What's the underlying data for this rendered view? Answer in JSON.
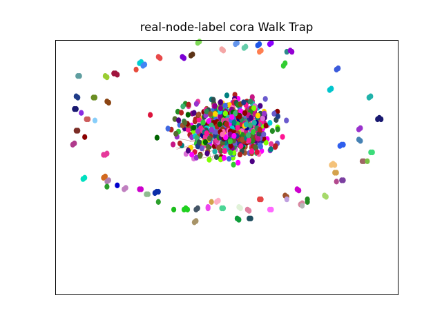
{
  "chart_data": {
    "type": "scatter",
    "title": "real-node-label cora Walk Trap",
    "xlabel": "",
    "ylabel": "",
    "axes_ticks": "none",
    "grid": false,
    "legend": "none",
    "point_size": "small",
    "xlim": [
      -1.0,
      1.0
    ],
    "ylim": [
      -1.0,
      1.0
    ],
    "layout": "graph node embedding: dense central cluster with small peripheral communities arranged in a ring",
    "series": [
      {
        "color": "#7ed957",
        "points": [
          [
            -0.17,
            0.98
          ],
          [
            -0.16,
            0.99
          ]
        ]
      },
      {
        "color": "#f4a6a6",
        "points": [
          [
            -0.03,
            0.93
          ],
          [
            -0.02,
            0.92
          ]
        ]
      },
      {
        "color": "#6495ed",
        "points": [
          [
            0.05,
            0.97
          ],
          [
            0.06,
            0.98
          ]
        ]
      },
      {
        "color": "#66cdaa",
        "points": [
          [
            0.1,
            0.94
          ],
          [
            0.11,
            0.95
          ]
        ]
      },
      {
        "color": "#1e56e8",
        "points": [
          [
            0.18,
            0.96
          ],
          [
            0.19,
            0.97
          ]
        ]
      },
      {
        "color": "#8b00ff",
        "points": [
          [
            0.25,
            0.97
          ],
          [
            0.26,
            0.98
          ]
        ]
      },
      {
        "color": "#ff7f50",
        "points": [
          [
            0.19,
            0.91
          ],
          [
            0.2,
            0.92
          ]
        ]
      },
      {
        "color": "#2e8b8b",
        "points": [
          [
            0.35,
            0.91
          ]
        ]
      },
      {
        "color": "#9400d3",
        "points": [
          [
            0.37,
            0.92
          ],
          [
            0.38,
            0.91
          ]
        ]
      },
      {
        "color": "#5c3317",
        "points": [
          [
            -0.2,
            0.89
          ],
          [
            -0.21,
            0.88
          ]
        ]
      },
      {
        "color": "#7b00d4",
        "points": [
          [
            -0.25,
            0.86
          ],
          [
            -0.26,
            0.87
          ]
        ]
      },
      {
        "color": "#e84a4a",
        "points": [
          [
            -0.39,
            0.86
          ],
          [
            -0.4,
            0.87
          ]
        ]
      },
      {
        "color": "#00ced1",
        "points": [
          [
            -0.51,
            0.82
          ],
          [
            -0.5,
            0.83
          ]
        ]
      },
      {
        "color": "#4285f4",
        "points": [
          [
            -0.48,
            0.81
          ],
          [
            -0.49,
            0.8
          ]
        ]
      },
      {
        "color": "#e74c3c",
        "points": [
          [
            -0.53,
            0.77
          ]
        ]
      },
      {
        "color": "#32cd32",
        "points": [
          [
            0.33,
            0.8
          ],
          [
            0.34,
            0.82
          ]
        ]
      },
      {
        "color": "#a0153e",
        "points": [
          [
            -0.65,
            0.74
          ],
          [
            -0.64,
            0.73
          ],
          [
            -0.66,
            0.74
          ]
        ]
      },
      {
        "color": "#9acd32",
        "points": [
          [
            -0.71,
            0.72
          ],
          [
            -0.7,
            0.71
          ]
        ]
      },
      {
        "color": "#5f9ea0",
        "points": [
          [
            -0.87,
            0.72
          ],
          [
            -0.86,
            0.72
          ]
        ]
      },
      {
        "color": "#3b5bdb",
        "points": [
          [
            0.64,
            0.77
          ],
          [
            0.65,
            0.78
          ]
        ]
      },
      {
        "color": "#00c5cd",
        "points": [
          [
            0.6,
            0.61
          ],
          [
            0.61,
            0.62
          ]
        ]
      },
      {
        "color": "#20b2aa",
        "points": [
          [
            0.83,
            0.55
          ],
          [
            0.84,
            0.56
          ]
        ]
      },
      {
        "color": "#1f3c88",
        "points": [
          [
            -0.88,
            0.56
          ],
          [
            -0.87,
            0.55
          ]
        ]
      },
      {
        "color": "#6b8e23",
        "points": [
          [
            -0.78,
            0.55
          ],
          [
            -0.77,
            0.55
          ]
        ]
      },
      {
        "color": "#8b4513",
        "points": [
          [
            -0.7,
            0.52
          ],
          [
            -0.69,
            0.51
          ]
        ]
      },
      {
        "color": "#191970",
        "points": [
          [
            -0.89,
            0.46
          ],
          [
            -0.88,
            0.46
          ]
        ]
      },
      {
        "color": "#8a2be2",
        "points": [
          [
            -0.85,
            0.43
          ]
        ]
      },
      {
        "color": "#cd5c5c",
        "points": [
          [
            -0.82,
            0.38
          ],
          [
            -0.81,
            0.38
          ]
        ]
      },
      {
        "color": "#87cefa",
        "points": [
          [
            -0.77,
            0.37
          ]
        ]
      },
      {
        "color": "#191970",
        "points": [
          [
            0.9,
            0.38
          ],
          [
            0.89,
            0.39
          ],
          [
            0.88,
            0.38
          ]
        ]
      },
      {
        "color": "#9932cc",
        "points": [
          [
            0.77,
            0.3
          ],
          [
            0.78,
            0.31
          ]
        ]
      },
      {
        "color": "#7b2d26",
        "points": [
          [
            -0.88,
            0.29
          ],
          [
            -0.87,
            0.29
          ]
        ]
      },
      {
        "color": "#4682b4",
        "points": [
          [
            0.77,
            0.22
          ],
          [
            0.78,
            0.21
          ]
        ]
      },
      {
        "color": "#8b0000",
        "points": [
          [
            -0.83,
            0.24
          ]
        ]
      },
      {
        "color": "#b03a8c",
        "points": [
          [
            -0.9,
            0.18
          ],
          [
            -0.89,
            0.19
          ]
        ]
      },
      {
        "color": "#2f5fed",
        "points": [
          [
            0.66,
            0.17
          ],
          [
            0.67,
            0.18
          ],
          [
            0.68,
            0.18
          ]
        ]
      },
      {
        "color": "#3cdc7a",
        "points": [
          [
            0.84,
            0.12
          ],
          [
            0.85,
            0.12
          ]
        ]
      },
      {
        "color": "#e6399b",
        "points": [
          [
            -0.7,
            0.11
          ],
          [
            -0.71,
            0.1
          ],
          [
            -0.72,
            0.1
          ]
        ]
      },
      {
        "color": "#9f6565",
        "points": [
          [
            0.8,
            0.05
          ],
          [
            0.79,
            0.05
          ]
        ]
      },
      {
        "color": "#7ac143",
        "points": [
          [
            0.82,
            0.05
          ]
        ]
      },
      {
        "color": "#f4c27a",
        "points": [
          [
            0.61,
            0.02
          ],
          [
            0.62,
            0.03
          ],
          [
            0.63,
            0.02
          ]
        ]
      },
      {
        "color": "#d4a24c",
        "points": [
          [
            0.63,
            -0.04
          ],
          [
            0.64,
            -0.04
          ]
        ]
      },
      {
        "color": "#7b3fa0",
        "points": [
          [
            0.67,
            -0.1
          ],
          [
            0.68,
            -0.1
          ]
        ]
      },
      {
        "color": "#b34a8e",
        "points": [
          [
            0.64,
            -0.11
          ]
        ]
      },
      {
        "color": "#00e0c0",
        "points": [
          [
            -0.84,
            -0.09
          ],
          [
            -0.83,
            -0.08
          ]
        ]
      },
      {
        "color": "#d2691e",
        "points": [
          [
            -0.72,
            -0.08
          ],
          [
            -0.71,
            -0.07
          ]
        ]
      },
      {
        "color": "#b07fb0",
        "points": [
          [
            -0.7,
            -0.11
          ],
          [
            -0.69,
            -0.1
          ]
        ]
      },
      {
        "color": "#2a9d2a",
        "points": [
          [
            -0.7,
            -0.15
          ]
        ]
      },
      {
        "color": "#0000cd",
        "points": [
          [
            -0.64,
            -0.14
          ]
        ]
      },
      {
        "color": "#c080c0",
        "points": [
          [
            -0.6,
            -0.17
          ],
          [
            -0.59,
            -0.16
          ]
        ]
      },
      {
        "color": "#cc00cc",
        "points": [
          [
            -0.51,
            -0.17
          ],
          [
            -0.5,
            -0.17
          ]
        ]
      },
      {
        "color": "#0b2fa8",
        "points": [
          [
            -0.42,
            -0.2
          ],
          [
            -0.41,
            -0.19
          ],
          [
            -0.4,
            -0.19
          ]
        ]
      },
      {
        "color": "#8fbc8f",
        "points": [
          [
            -0.47,
            -0.21
          ],
          [
            -0.46,
            -0.21
          ]
        ]
      },
      {
        "color": "#2ca02c",
        "points": [
          [
            -0.4,
            -0.27
          ]
        ]
      },
      {
        "color": "#cd00cd",
        "points": [
          [
            0.41,
            -0.17
          ],
          [
            0.42,
            -0.18
          ]
        ]
      },
      {
        "color": "#a0522d",
        "points": [
          [
            0.34,
            -0.22
          ],
          [
            0.35,
            -0.23
          ]
        ]
      },
      {
        "color": "#c0a0e0",
        "points": [
          [
            0.35,
            -0.25
          ]
        ]
      },
      {
        "color": "#a6d96a",
        "points": [
          [
            0.57,
            -0.22
          ],
          [
            0.58,
            -0.23
          ]
        ]
      },
      {
        "color": "#228b22",
        "points": [
          [
            0.47,
            -0.25
          ],
          [
            0.47,
            -0.27
          ]
        ]
      },
      {
        "color": "#d986a0",
        "points": [
          [
            0.43,
            -0.29
          ],
          [
            0.44,
            -0.28
          ]
        ]
      },
      {
        "color": "#b7b7b7",
        "points": [
          [
            0.44,
            -0.3
          ]
        ]
      },
      {
        "color": "#e44545",
        "points": [
          [
            0.19,
            -0.25
          ],
          [
            0.2,
            -0.25
          ]
        ]
      },
      {
        "color": "#ff69ff",
        "points": [
          [
            0.25,
            -0.33
          ],
          [
            0.26,
            -0.33
          ]
        ]
      },
      {
        "color": "#e080a0",
        "points": [
          [
            0.12,
            -0.33
          ],
          [
            0.13,
            -0.34
          ]
        ]
      },
      {
        "color": "#e0f2d8",
        "points": [
          [
            0.07,
            -0.31
          ],
          [
            0.08,
            -0.32
          ]
        ]
      },
      {
        "color": "#4bd696",
        "points": [
          [
            -0.03,
            -0.32
          ],
          [
            -0.02,
            -0.32
          ]
        ]
      },
      {
        "color": "#ffb0c8",
        "points": [
          [
            -0.06,
            -0.27
          ],
          [
            -0.05,
            -0.26
          ]
        ]
      },
      {
        "color": "#d4a24c",
        "points": [
          [
            -0.09,
            -0.27
          ]
        ]
      },
      {
        "color": "#ee44ee",
        "points": [
          [
            -0.11,
            -0.31
          ],
          [
            -0.11,
            -0.32
          ]
        ]
      },
      {
        "color": "#445566",
        "points": [
          [
            -0.18,
            -0.33
          ],
          [
            -0.17,
            -0.32
          ]
        ]
      },
      {
        "color": "#20d020",
        "points": [
          [
            -0.25,
            -0.33
          ],
          [
            -0.24,
            -0.32
          ],
          [
            -0.23,
            -0.33
          ]
        ]
      },
      {
        "color": "#1cbd1c",
        "points": [
          [
            -0.31,
            -0.33
          ]
        ]
      },
      {
        "color": "#a89468",
        "points": [
          [
            -0.19,
            -0.43
          ],
          [
            -0.18,
            -0.42
          ]
        ]
      },
      {
        "color": "#0f9d3a",
        "points": [
          [
            0.06,
            -0.4
          ],
          [
            0.07,
            -0.41
          ]
        ]
      },
      {
        "color": "#1f4e5f",
        "points": [
          [
            0.13,
            -0.4
          ],
          [
            0.14,
            -0.4
          ]
        ]
      }
    ],
    "clusters": [
      {
        "center": [
          0.0,
          0.3
        ],
        "spread": [
          0.28,
          0.22
        ],
        "count": 520
      },
      {
        "center": [
          0.13,
          0.38
        ],
        "spread": [
          0.1,
          0.14
        ],
        "count": 80
      },
      {
        "center": [
          0.02,
          0.25
        ],
        "spread": [
          0.14,
          0.1
        ],
        "count": 90
      }
    ]
  }
}
